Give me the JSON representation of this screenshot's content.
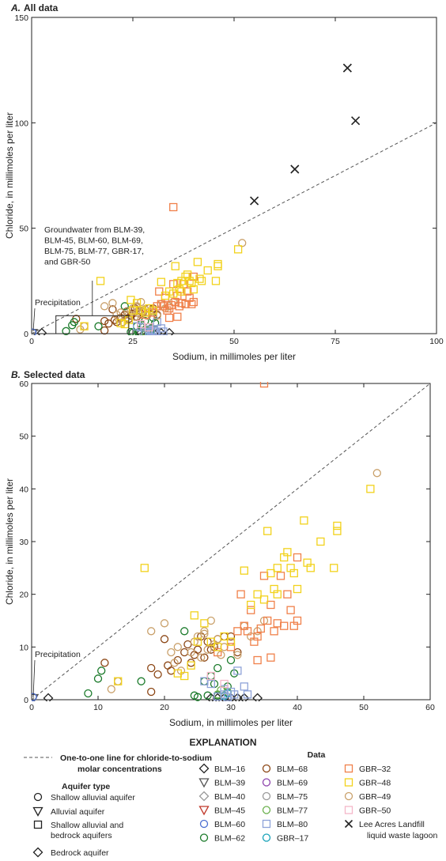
{
  "chart_data": [
    {
      "panel": "A",
      "type": "scatter",
      "title": "All data",
      "panel_letter": "A.",
      "xlabel": "Sodium, in millimoles per liter",
      "ylabel": "Chloride, in millimoles per liter",
      "xlim": [
        0,
        100
      ],
      "ylim": [
        0,
        150
      ],
      "xticks": [
        "0",
        "25",
        "50",
        "75",
        "100"
      ],
      "yticks": [
        "0",
        "50",
        "100",
        "150"
      ],
      "annotations": {
        "precipitation": "Precipitation",
        "groundwater_box": [
          "Groundwater from BLM-39,",
          "BLM-45, BLM-60, BLM-69,",
          "BLM-75, BLM-77, GBR-17,",
          "and GBR-50"
        ]
      },
      "groundwater_box_extent": {
        "x": [
          6,
          24
        ],
        "y": [
          0,
          8.5
        ]
      },
      "one_to_one_line": true,
      "series": [
        {
          "name": "Lee Acres Landfill liquid waste lagoon",
          "marker": "x",
          "color": "#222222",
          "points": [
            [
              78,
              126
            ],
            [
              80,
              101
            ],
            [
              65,
              78
            ],
            [
              55,
              63
            ]
          ]
        }
      ]
    },
    {
      "panel": "B",
      "type": "scatter",
      "title": "Selected data",
      "panel_letter": "B.",
      "xlabel": "Sodium, in millimoles per liter",
      "ylabel": "Chloride, in millimoles per liter",
      "xlim": [
        0,
        60
      ],
      "ylim": [
        0,
        60
      ],
      "xticks": [
        "0",
        "10",
        "20",
        "30",
        "40",
        "50",
        "60"
      ],
      "yticks": [
        "0",
        "10",
        "20",
        "30",
        "40",
        "50",
        "60"
      ],
      "annotations": {
        "precipitation": "Precipitation"
      },
      "one_to_one_line": true,
      "series": [
        {
          "name": "BLM–16",
          "marker": "diamond",
          "color": "#222222",
          "points": [
            [
              2.5,
              0.3
            ],
            [
              27,
              0.3
            ],
            [
              28,
              0.3
            ],
            [
              29,
              0.3
            ],
            [
              30,
              0.3
            ],
            [
              31,
              0.3
            ],
            [
              32,
              0.3
            ],
            [
              34,
              0.3
            ]
          ]
        },
        {
          "name": "BLM–68",
          "marker": "circle",
          "color": "#8b4513",
          "points": [
            [
              11,
              7
            ],
            [
              18,
              6
            ],
            [
              19,
              4.8
            ],
            [
              20,
              11.5
            ],
            [
              20.5,
              6.5
            ],
            [
              21,
              5.5
            ],
            [
              22,
              7.5
            ],
            [
              23,
              9
            ],
            [
              23.5,
              10.5
            ],
            [
              24,
              7
            ],
            [
              24.5,
              8.5
            ],
            [
              25,
              9.5
            ],
            [
              26,
              8
            ],
            [
              26.5,
              11
            ],
            [
              27,
              9.5
            ],
            [
              27.5,
              10
            ],
            [
              28,
              11.5
            ],
            [
              29,
              12
            ],
            [
              30,
              12
            ],
            [
              31,
              9
            ],
            [
              18,
              1.5
            ],
            [
              25.5,
              12
            ]
          ]
        },
        {
          "name": "BLM–62",
          "marker": "circle",
          "color": "#1a7a2a",
          "points": [
            [
              8.5,
              1.2
            ],
            [
              10,
              4
            ],
            [
              10.5,
              5.5
            ],
            [
              16.5,
              3.5
            ],
            [
              23,
              13
            ],
            [
              24.5,
              0.8
            ],
            [
              25,
              0.5
            ],
            [
              26,
              3.5
            ],
            [
              26.5,
              0.8
            ],
            [
              27,
              4.5
            ],
            [
              27.5,
              3
            ],
            [
              28,
              0.8
            ],
            [
              29.5,
              2.5
            ],
            [
              30,
              7.5
            ],
            [
              30.5,
              5
            ],
            [
              28,
              6
            ]
          ]
        },
        {
          "name": "BLM–77",
          "marker": "circle",
          "color": "#6ab04c",
          "points": [
            [
              28,
              1
            ],
            [
              28.5,
              1.8
            ],
            [
              29,
              0.8
            ],
            [
              29.5,
              1.5
            ]
          ]
        },
        {
          "name": "GBR–17",
          "marker": "circle",
          "color": "#17a2b8",
          "points": [
            [
              29,
              0.7
            ],
            [
              29.5,
              1.2
            ]
          ]
        },
        {
          "name": "BLM–80",
          "marker": "square",
          "color": "#8fa3d9",
          "points": [
            [
              26,
              3.5
            ],
            [
              27,
              3
            ],
            [
              28,
              0.6
            ],
            [
              29,
              1
            ],
            [
              29,
              2
            ],
            [
              29.5,
              0.5
            ],
            [
              30,
              1.5
            ],
            [
              30.5,
              1
            ],
            [
              31,
              5.5
            ],
            [
              32,
              2.5
            ],
            [
              32.5,
              1
            ]
          ]
        },
        {
          "name": "GBR–49",
          "marker": "circle",
          "color": "#c9a06a",
          "points": [
            [
              12,
              2
            ],
            [
              13,
              3.5
            ],
            [
              18,
              13
            ],
            [
              20,
              14.5
            ],
            [
              21,
              9
            ],
            [
              22,
              10
            ],
            [
              22.5,
              5.5
            ],
            [
              24,
              9
            ],
            [
              24.5,
              11
            ],
            [
              25,
              12
            ],
            [
              25.5,
              8
            ],
            [
              26,
              13
            ],
            [
              26.5,
              9.5
            ],
            [
              27,
              15
            ],
            [
              27.5,
              10.5
            ],
            [
              28,
              11.5
            ],
            [
              29,
              10
            ],
            [
              30,
              11
            ],
            [
              31,
              8.5
            ],
            [
              32,
              14
            ],
            [
              33,
              12
            ],
            [
              34,
              13
            ],
            [
              35,
              15
            ],
            [
              52,
              43
            ],
            [
              21.5,
              7
            ],
            [
              26,
              12.5
            ],
            [
              28.5,
              8.5
            ]
          ]
        },
        {
          "name": "GBR–32",
          "marker": "square",
          "color": "#f0804a",
          "points": [
            [
              28,
              9
            ],
            [
              30,
              10
            ],
            [
              31,
              13
            ],
            [
              31.5,
              20
            ],
            [
              32,
              14
            ],
            [
              32.5,
              13
            ],
            [
              33,
              17
            ],
            [
              33.5,
              11
            ],
            [
              34,
              12
            ],
            [
              34.5,
              13.5
            ],
            [
              35,
              60
            ],
            [
              35,
              23.5
            ],
            [
              35.5,
              15
            ],
            [
              36,
              18
            ],
            [
              36.5,
              13
            ],
            [
              37,
              14.5
            ],
            [
              37.5,
              23.5
            ],
            [
              38,
              14
            ],
            [
              38.5,
              20
            ],
            [
              39,
              17
            ],
            [
              39.5,
              14
            ],
            [
              40,
              15
            ],
            [
              40,
              27
            ],
            [
              36,
              8
            ],
            [
              34,
              7.5
            ]
          ]
        },
        {
          "name": "GBR–48",
          "marker": "square",
          "color": "#f2d21b",
          "points": [
            [
              13,
              3.5
            ],
            [
              17,
              25
            ],
            [
              22,
              5
            ],
            [
              23,
              4.5
            ],
            [
              24,
              6.5
            ],
            [
              24.5,
              16
            ],
            [
              25,
              11
            ],
            [
              26,
              14.5
            ],
            [
              27,
              11
            ],
            [
              28,
              10
            ],
            [
              29,
              12
            ],
            [
              30,
              11
            ],
            [
              32,
              24.5
            ],
            [
              33,
              18
            ],
            [
              34,
              20
            ],
            [
              35,
              19
            ],
            [
              35.5,
              32
            ],
            [
              36,
              24
            ],
            [
              37,
              25
            ],
            [
              38,
              27
            ],
            [
              38.5,
              28
            ],
            [
              39,
              25
            ],
            [
              39.5,
              24
            ],
            [
              40,
              21
            ],
            [
              41,
              34
            ],
            [
              41.5,
              26
            ],
            [
              42,
              25
            ],
            [
              43.5,
              30
            ],
            [
              45.5,
              25
            ],
            [
              46,
              32
            ],
            [
              46,
              33
            ],
            [
              51,
              40
            ],
            [
              37,
              20
            ],
            [
              36.5,
              21
            ]
          ]
        },
        {
          "name": "GBR–50",
          "marker": "square",
          "color": "#f4b6c8",
          "points": [
            [
              27,
              4.5
            ],
            [
              29,
              3
            ]
          ]
        },
        {
          "name": "BLM–39",
          "marker": "triangle",
          "color": "#555555",
          "points": [
            [
              0.3,
              0.3
            ]
          ]
        },
        {
          "name": "BLM–60",
          "marker": "circle",
          "color": "#4c6fd1",
          "points": [
            [
              0.2,
              0.5
            ]
          ]
        }
      ]
    }
  ],
  "legend": {
    "title": "EXPLANATION",
    "line_label_1": "One-to-one line for chloride-to-sodium",
    "line_label_2": "molar concentrations",
    "aquifer_title": "Aquifer type",
    "aquifer_items": [
      {
        "marker": "circle",
        "label_1": "Shallow alluvial aquifer",
        "label_2": ""
      },
      {
        "marker": "triangle",
        "label_1": "Alluvial aquifer",
        "label_2": ""
      },
      {
        "marker": "square",
        "label_1": "Shallow alluvial and",
        "label_2": "bedrock aquifers"
      },
      {
        "marker": "diamond",
        "label_1": "Bedrock aquifer",
        "label_2": ""
      }
    ],
    "data_title": "Data",
    "data_col1": [
      {
        "marker": "diamond",
        "color": "#222222",
        "label": "BLM–16"
      },
      {
        "marker": "triangle",
        "color": "#555555",
        "label": "BLM–39"
      },
      {
        "marker": "diamond",
        "color": "#999999",
        "label": "BLM–40"
      },
      {
        "marker": "triangle",
        "color": "#c0392b",
        "label": "BLM–45"
      },
      {
        "marker": "circle",
        "color": "#4c6fd1",
        "label": "BLM–60"
      },
      {
        "marker": "circle",
        "color": "#1a7a2a",
        "label": "BLM–62"
      }
    ],
    "data_col2": [
      {
        "marker": "circle",
        "color": "#8b4513",
        "label": "BLM–68"
      },
      {
        "marker": "circle",
        "color": "#8e44ad",
        "label": "BLM–69"
      },
      {
        "marker": "circle",
        "color": "#999999",
        "label": "BLM–75"
      },
      {
        "marker": "circle",
        "color": "#6ab04c",
        "label": "BLM–77"
      },
      {
        "marker": "square",
        "color": "#8fa3d9",
        "label": "BLM–80"
      },
      {
        "marker": "circle",
        "color": "#17a2b8",
        "label": "GBR–17"
      }
    ],
    "data_col3": [
      {
        "marker": "square",
        "color": "#f0804a",
        "label": "GBR–32"
      },
      {
        "marker": "square",
        "color": "#f2d21b",
        "label": "GBR–48"
      },
      {
        "marker": "circle",
        "color": "#c9a06a",
        "label": "GBR–49"
      },
      {
        "marker": "square",
        "color": "#f4b6c8",
        "label": "GBR–50"
      },
      {
        "marker": "x",
        "color": "#222222",
        "label_1": "Lee Acres Landfill",
        "label_2": "liquid waste lagoon"
      }
    ]
  }
}
